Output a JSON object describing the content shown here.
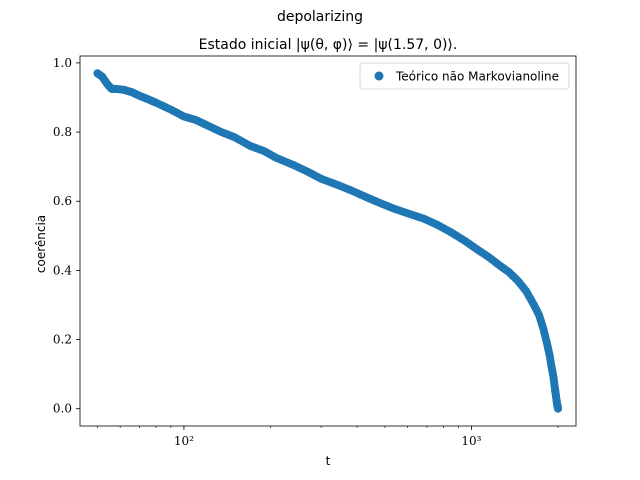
{
  "chart_data": {
    "type": "scatter",
    "suptitle": "depolarizing",
    "title": "Estado inicial |ψ(θ, φ)⟩ = |ψ(1.57, 0)⟩.",
    "xlabel": "t",
    "ylabel": "coerência",
    "xscale": "log",
    "xlim": [
      43.5,
      2310
    ],
    "ylim": [
      -0.05,
      1.02
    ],
    "xticks_major": [
      {
        "value": 100,
        "label": "10²"
      },
      {
        "value": 1000,
        "label": "10³"
      }
    ],
    "yticks": [
      0.0,
      0.2,
      0.4,
      0.6,
      0.8,
      1.0
    ],
    "ytick_labels": [
      "0.0",
      "0.2",
      "0.4",
      "0.6",
      "0.8",
      "1.0"
    ],
    "grid": false,
    "legend": {
      "position": "top-right",
      "entries": [
        {
          "label": "Teórico não Markovianoline",
          "color": "#1f77b4"
        }
      ]
    },
    "series": [
      {
        "name": "Teórico não Markovianoline",
        "color": "#1f77b4",
        "marker": "circle",
        "x": [
          50,
          52,
          54,
          56,
          58,
          62,
          66,
          70,
          75,
          80,
          90,
          100,
          110,
          120,
          135,
          150,
          170,
          190,
          210,
          240,
          270,
          300,
          340,
          380,
          430,
          480,
          540,
          600,
          680,
          760,
          850,
          950,
          1050,
          1150,
          1250,
          1350,
          1450,
          1550,
          1650,
          1720,
          1780,
          1830,
          1870,
          1900,
          1930,
          1950,
          1965,
          1980,
          1990,
          2000
        ],
        "y": [
          0.97,
          0.96,
          0.94,
          0.925,
          0.925,
          0.922,
          0.915,
          0.905,
          0.895,
          0.885,
          0.865,
          0.845,
          0.835,
          0.82,
          0.8,
          0.785,
          0.76,
          0.745,
          0.725,
          0.705,
          0.685,
          0.665,
          0.648,
          0.632,
          0.612,
          0.595,
          0.578,
          0.565,
          0.55,
          0.532,
          0.51,
          0.485,
          0.46,
          0.438,
          0.415,
          0.395,
          0.37,
          0.34,
          0.3,
          0.27,
          0.23,
          0.19,
          0.155,
          0.12,
          0.09,
          0.06,
          0.04,
          0.02,
          0.01,
          0.0
        ]
      }
    ]
  }
}
